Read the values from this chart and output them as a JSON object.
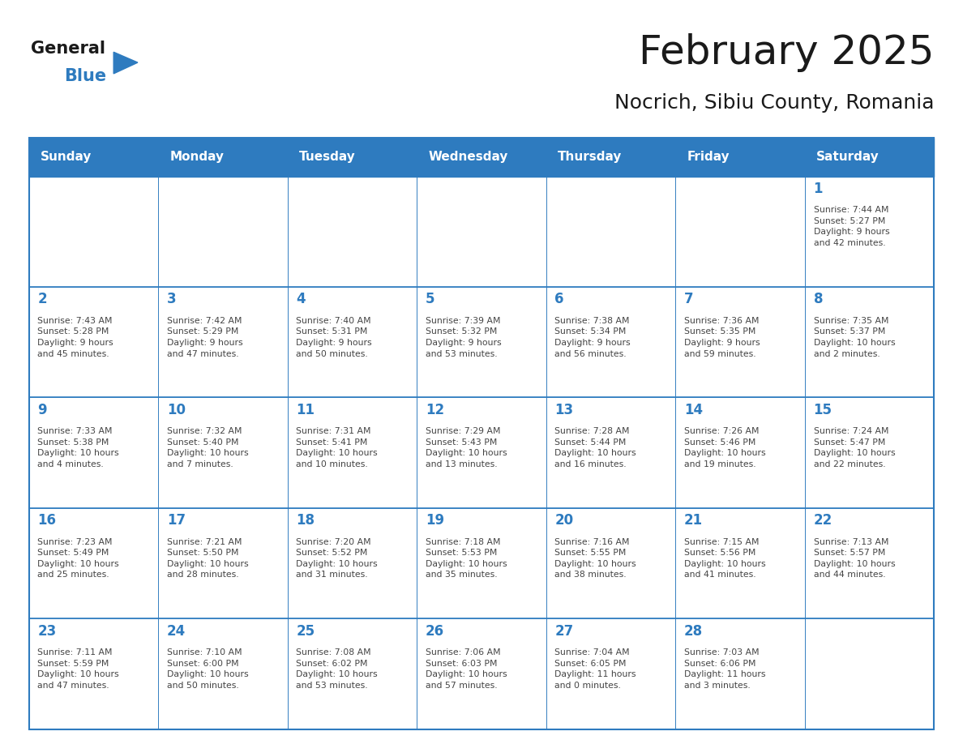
{
  "title": "February 2025",
  "subtitle": "Nocrich, Sibiu County, Romania",
  "header_color": "#2E7BBF",
  "header_text_color": "#FFFFFF",
  "cell_bg_color": "#FFFFFF",
  "border_color": "#2E7BBF",
  "day_number_color": "#2E7BBF",
  "text_color": "#444444",
  "days_of_week": [
    "Sunday",
    "Monday",
    "Tuesday",
    "Wednesday",
    "Thursday",
    "Friday",
    "Saturday"
  ],
  "weeks": [
    [
      {
        "day": null,
        "info": null
      },
      {
        "day": null,
        "info": null
      },
      {
        "day": null,
        "info": null
      },
      {
        "day": null,
        "info": null
      },
      {
        "day": null,
        "info": null
      },
      {
        "day": null,
        "info": null
      },
      {
        "day": 1,
        "info": "Sunrise: 7:44 AM\nSunset: 5:27 PM\nDaylight: 9 hours\nand 42 minutes."
      }
    ],
    [
      {
        "day": 2,
        "info": "Sunrise: 7:43 AM\nSunset: 5:28 PM\nDaylight: 9 hours\nand 45 minutes."
      },
      {
        "day": 3,
        "info": "Sunrise: 7:42 AM\nSunset: 5:29 PM\nDaylight: 9 hours\nand 47 minutes."
      },
      {
        "day": 4,
        "info": "Sunrise: 7:40 AM\nSunset: 5:31 PM\nDaylight: 9 hours\nand 50 minutes."
      },
      {
        "day": 5,
        "info": "Sunrise: 7:39 AM\nSunset: 5:32 PM\nDaylight: 9 hours\nand 53 minutes."
      },
      {
        "day": 6,
        "info": "Sunrise: 7:38 AM\nSunset: 5:34 PM\nDaylight: 9 hours\nand 56 minutes."
      },
      {
        "day": 7,
        "info": "Sunrise: 7:36 AM\nSunset: 5:35 PM\nDaylight: 9 hours\nand 59 minutes."
      },
      {
        "day": 8,
        "info": "Sunrise: 7:35 AM\nSunset: 5:37 PM\nDaylight: 10 hours\nand 2 minutes."
      }
    ],
    [
      {
        "day": 9,
        "info": "Sunrise: 7:33 AM\nSunset: 5:38 PM\nDaylight: 10 hours\nand 4 minutes."
      },
      {
        "day": 10,
        "info": "Sunrise: 7:32 AM\nSunset: 5:40 PM\nDaylight: 10 hours\nand 7 minutes."
      },
      {
        "day": 11,
        "info": "Sunrise: 7:31 AM\nSunset: 5:41 PM\nDaylight: 10 hours\nand 10 minutes."
      },
      {
        "day": 12,
        "info": "Sunrise: 7:29 AM\nSunset: 5:43 PM\nDaylight: 10 hours\nand 13 minutes."
      },
      {
        "day": 13,
        "info": "Sunrise: 7:28 AM\nSunset: 5:44 PM\nDaylight: 10 hours\nand 16 minutes."
      },
      {
        "day": 14,
        "info": "Sunrise: 7:26 AM\nSunset: 5:46 PM\nDaylight: 10 hours\nand 19 minutes."
      },
      {
        "day": 15,
        "info": "Sunrise: 7:24 AM\nSunset: 5:47 PM\nDaylight: 10 hours\nand 22 minutes."
      }
    ],
    [
      {
        "day": 16,
        "info": "Sunrise: 7:23 AM\nSunset: 5:49 PM\nDaylight: 10 hours\nand 25 minutes."
      },
      {
        "day": 17,
        "info": "Sunrise: 7:21 AM\nSunset: 5:50 PM\nDaylight: 10 hours\nand 28 minutes."
      },
      {
        "day": 18,
        "info": "Sunrise: 7:20 AM\nSunset: 5:52 PM\nDaylight: 10 hours\nand 31 minutes."
      },
      {
        "day": 19,
        "info": "Sunrise: 7:18 AM\nSunset: 5:53 PM\nDaylight: 10 hours\nand 35 minutes."
      },
      {
        "day": 20,
        "info": "Sunrise: 7:16 AM\nSunset: 5:55 PM\nDaylight: 10 hours\nand 38 minutes."
      },
      {
        "day": 21,
        "info": "Sunrise: 7:15 AM\nSunset: 5:56 PM\nDaylight: 10 hours\nand 41 minutes."
      },
      {
        "day": 22,
        "info": "Sunrise: 7:13 AM\nSunset: 5:57 PM\nDaylight: 10 hours\nand 44 minutes."
      }
    ],
    [
      {
        "day": 23,
        "info": "Sunrise: 7:11 AM\nSunset: 5:59 PM\nDaylight: 10 hours\nand 47 minutes."
      },
      {
        "day": 24,
        "info": "Sunrise: 7:10 AM\nSunset: 6:00 PM\nDaylight: 10 hours\nand 50 minutes."
      },
      {
        "day": 25,
        "info": "Sunrise: 7:08 AM\nSunset: 6:02 PM\nDaylight: 10 hours\nand 53 minutes."
      },
      {
        "day": 26,
        "info": "Sunrise: 7:06 AM\nSunset: 6:03 PM\nDaylight: 10 hours\nand 57 minutes."
      },
      {
        "day": 27,
        "info": "Sunrise: 7:04 AM\nSunset: 6:05 PM\nDaylight: 11 hours\nand 0 minutes."
      },
      {
        "day": 28,
        "info": "Sunrise: 7:03 AM\nSunset: 6:06 PM\nDaylight: 11 hours\nand 3 minutes."
      },
      {
        "day": null,
        "info": null
      }
    ]
  ],
  "logo_color_general": "#1a1a1a",
  "logo_color_blue": "#2E7BBF",
  "logo_triangle_color": "#2E7BBF",
  "title_fontsize": 36,
  "subtitle_fontsize": 18,
  "header_fontsize": 11,
  "day_num_fontsize": 12,
  "cell_text_fontsize": 7.8
}
